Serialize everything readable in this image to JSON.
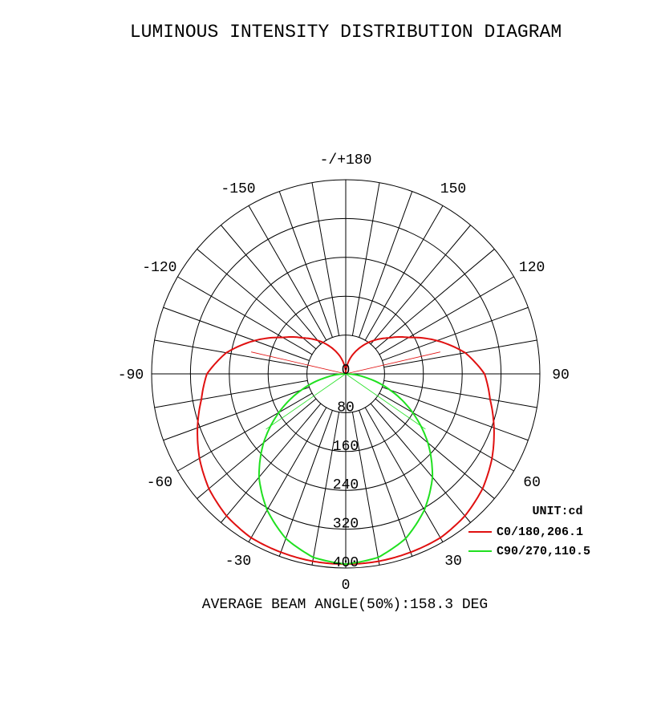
{
  "chart_data": {
    "type": "polar",
    "title": "LUMINOUS INTENSITY DISTRIBUTION DIAGRAM",
    "unit_label": "UNIT:cd",
    "footer": "AVERAGE BEAM ANGLE(50%):158.3 DEG",
    "radial_max": 400,
    "radial_ticks": [
      0,
      80,
      160,
      240,
      320,
      400
    ],
    "radial_tick_labels": [
      "0",
      "80",
      "160",
      "240",
      "320",
      "400"
    ],
    "angle_step_deg": 10,
    "angle_labels": [
      {
        "angle": 0,
        "text": "0"
      },
      {
        "angle": 30,
        "text": "30"
      },
      {
        "angle": 60,
        "text": "60"
      },
      {
        "angle": 90,
        "text": "90"
      },
      {
        "angle": 120,
        "text": "120"
      },
      {
        "angle": 150,
        "text": "150"
      },
      {
        "angle": 180,
        "text": "-/+180"
      },
      {
        "angle": -150,
        "text": "-150"
      },
      {
        "angle": -120,
        "text": "-120"
      },
      {
        "angle": -90,
        "text": "-90"
      },
      {
        "angle": -60,
        "text": "-60"
      },
      {
        "angle": -30,
        "text": "-30"
      }
    ],
    "series": [
      {
        "name": "C0/180,206.1",
        "color": "#e01010",
        "beam_angle_deg": 206.1,
        "angles": [
          0,
          10,
          20,
          30,
          40,
          50,
          60,
          70,
          80,
          90,
          100,
          110,
          120,
          130,
          140,
          150,
          160,
          170,
          180
        ],
        "values": [
          392,
          392,
          391,
          390,
          382,
          368,
          348,
          325,
          302,
          286,
          250,
          200,
          150,
          115,
          90,
          65,
          42,
          20,
          0
        ]
      },
      {
        "name": "C90/270,110.5",
        "color": "#20e020",
        "beam_angle_deg": 110.5,
        "angles": [
          0,
          10,
          20,
          30,
          40,
          50,
          60,
          70,
          80,
          90,
          100,
          110,
          120,
          130,
          140,
          150,
          160,
          170,
          180
        ],
        "values": [
          392,
          384,
          361,
          324,
          278,
          221,
          159,
          97,
          40,
          0,
          0,
          0,
          0,
          0,
          0,
          0,
          0,
          0,
          0
        ]
      }
    ]
  }
}
